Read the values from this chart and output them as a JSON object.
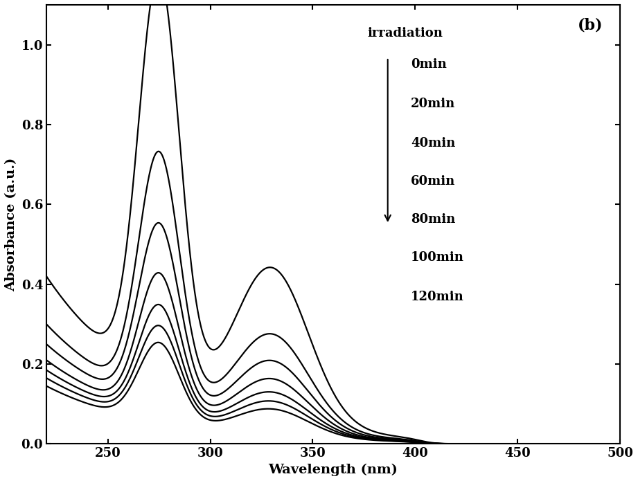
{
  "title_label": "(b)",
  "xlabel": "Wavelength (nm)",
  "ylabel": "Absorbance (a.u.)",
  "xlim": [
    220,
    500
  ],
  "ylim": [
    0.0,
    1.1
  ],
  "yticks": [
    0.0,
    0.2,
    0.4,
    0.6,
    0.8,
    1.0
  ],
  "xticks": [
    250,
    300,
    350,
    400,
    450,
    500
  ],
  "legend_labels": [
    "0min",
    "20min",
    "40min",
    "60min",
    "80min",
    "100min",
    "120min"
  ],
  "irradiation_text": "irradiation",
  "line_color": "#000000",
  "series_peak1": [
    1.02,
    0.62,
    0.46,
    0.35,
    0.28,
    0.235,
    0.2
  ],
  "series_peak2": [
    0.385,
    0.235,
    0.175,
    0.135,
    0.105,
    0.085,
    0.068
  ],
  "series_at220": [
    0.42,
    0.3,
    0.25,
    0.21,
    0.185,
    0.165,
    0.145
  ]
}
